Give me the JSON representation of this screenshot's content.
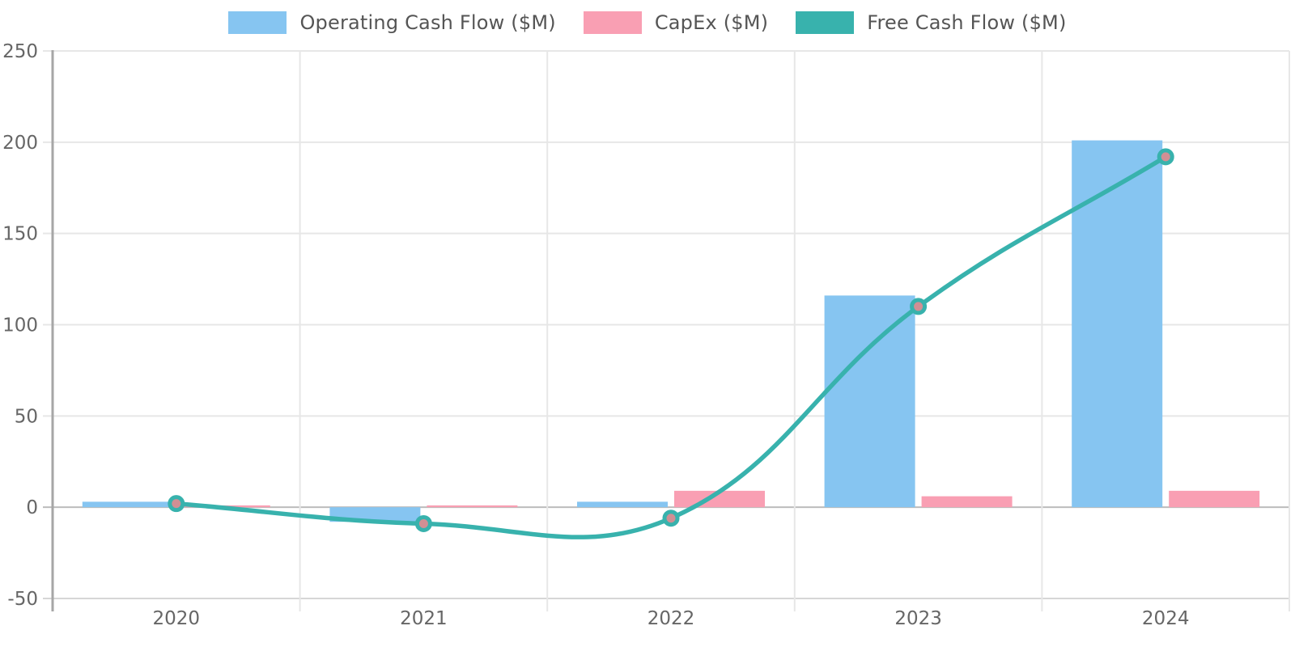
{
  "chart_data": {
    "type": "combo",
    "title": "",
    "categories": [
      "2020",
      "2021",
      "2022",
      "2023",
      "2024"
    ],
    "series": [
      {
        "name": "Operating Cash Flow ($M)",
        "type": "bar",
        "color": "#86C5F1",
        "values": [
          3,
          -8,
          3,
          116,
          201
        ]
      },
      {
        "name": "CapEx ($M)",
        "type": "bar",
        "color": "#F99FB3",
        "values": [
          1,
          1,
          9,
          6,
          9
        ]
      },
      {
        "name": "Free Cash Flow ($M)",
        "type": "line",
        "color": "#38B2AD",
        "point_fill": "#D18F94",
        "values": [
          2,
          -9,
          -6,
          110,
          192
        ]
      }
    ],
    "y_axis": {
      "min": -50,
      "max": 250,
      "step": 50,
      "tick_labels": [
        "-50",
        "0",
        "50",
        "100",
        "150",
        "200",
        "250"
      ]
    },
    "x_axis": {
      "tick_labels": [
        "2020",
        "2021",
        "2022",
        "2023",
        "2024"
      ]
    },
    "grid": true,
    "legend_position": "top",
    "line_style": {
      "smooth": true,
      "tension": 0.4
    }
  },
  "colors": {
    "background": "#FFFFFF",
    "grid_line": "#E7E7E7",
    "zero_line": "#BCBCBC",
    "axis_line": "#A6A6A6",
    "bottom_line": "#D6D6D6",
    "tick_text": "#666666",
    "legend_text": "#555555"
  }
}
